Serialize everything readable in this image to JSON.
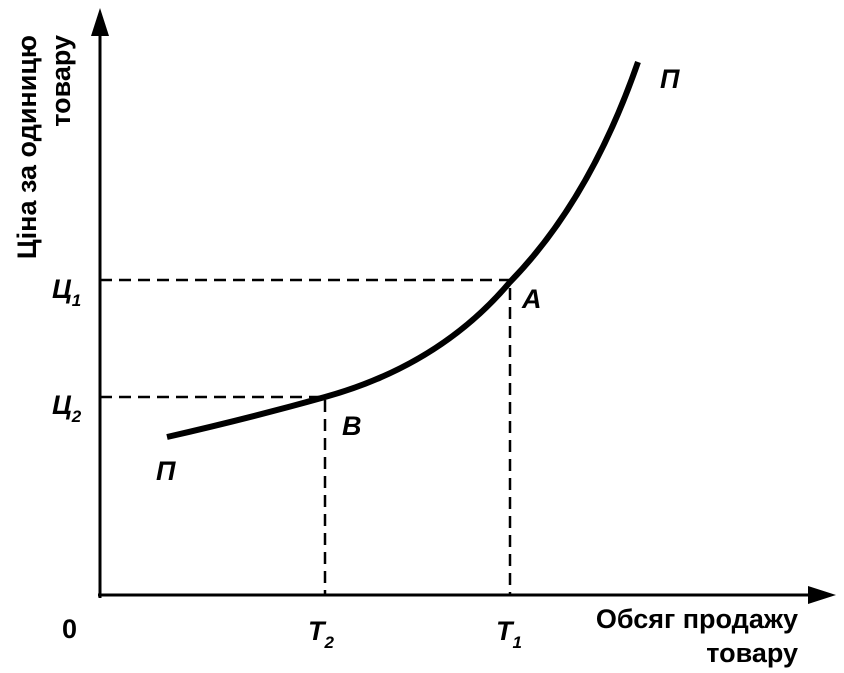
{
  "y_axis": {
    "label_lines": [
      "Ціна за одиницю",
      "товару"
    ]
  },
  "x_axis": {
    "label_lines": [
      "Обсяг продажу",
      "товару"
    ]
  },
  "origin": "0",
  "price_labels": [
    {
      "letter": "Ц",
      "sub": "1"
    },
    {
      "letter": "Ц",
      "sub": "2"
    }
  ],
  "quantity_labels": [
    {
      "letter": "Т",
      "sub": "2"
    },
    {
      "letter": "Т",
      "sub": "1"
    }
  ],
  "points": [
    "A",
    "B"
  ],
  "curve_labels": [
    "П",
    "П"
  ]
}
